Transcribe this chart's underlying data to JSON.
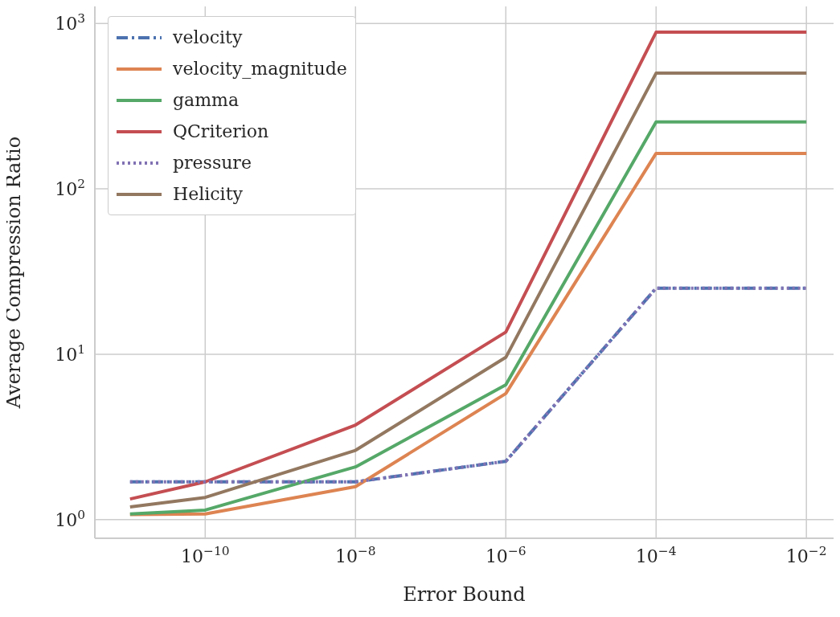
{
  "chart_data": {
    "type": "line",
    "xlabel": "Error Bound",
    "ylabel": "Average Compression Ratio",
    "x": [
      1e-11,
      1e-10,
      1e-08,
      1e-06,
      0.0001,
      0.01
    ],
    "series": [
      {
        "name": "velocity",
        "color": "#4c72b0",
        "line_style": "dashed",
        "values": [
          1.69,
          1.69,
          1.69,
          2.25,
          25.1,
          25.1
        ]
      },
      {
        "name": "velocity_magnitude",
        "color": "#dd8452",
        "values": [
          1.07,
          1.08,
          1.58,
          5.78,
          164,
          164
        ]
      },
      {
        "name": "gamma",
        "color": "#55a868",
        "values": [
          1.08,
          1.14,
          2.08,
          6.52,
          254,
          254
        ]
      },
      {
        "name": "QCriterion",
        "color": "#c44e52",
        "values": [
          1.33,
          1.69,
          3.73,
          13.6,
          887,
          887
        ]
      },
      {
        "name": "pressure",
        "color": "#8172b3",
        "line_style": "dotted",
        "values": [
          1.69,
          1.69,
          1.69,
          2.25,
          25.1,
          25.1
        ]
      },
      {
        "name": "Helicity",
        "color": "#937860",
        "values": [
          1.19,
          1.36,
          2.62,
          9.57,
          501,
          501
        ]
      }
    ],
    "log": "xy",
    "xlim": [
      3.4e-12,
      0.023
    ],
    "ylim": [
      0.77,
      1270
    ],
    "xticks": [
      {
        "value": 1e-10,
        "label": "10$^{−10}$"
      },
      {
        "value": 1e-08,
        "label": "10$^{−8}$"
      },
      {
        "value": 1e-06,
        "label": "10$^{−6}$"
      },
      {
        "value": 0.0001,
        "label": "10$^{−4}$"
      },
      {
        "value": 0.01,
        "label": "10$^{−2}$"
      }
    ],
    "yticks": [
      {
        "value": 1,
        "label": "10$^{0}$"
      },
      {
        "value": 10,
        "label": "10$^{1}$"
      },
      {
        "value": 100,
        "label": "10$^{2}$"
      },
      {
        "value": 1000,
        "label": "10$^{3}$"
      }
    ],
    "grid": true,
    "legend": "top left",
    "marker": "none",
    "line_style": "solid"
  }
}
